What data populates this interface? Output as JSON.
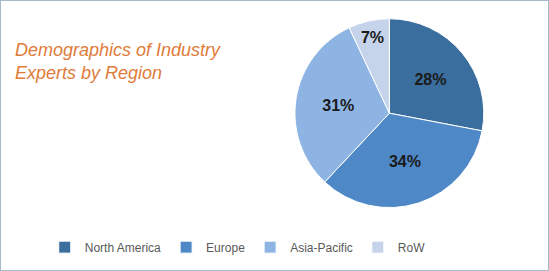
{
  "chart_data": {
    "type": "pie",
    "title": "Demographics of Industry Experts by Region",
    "categories": [
      "North America",
      "Europe",
      "Asia-Pacific",
      "RoW"
    ],
    "values": [
      28,
      34,
      31,
      7
    ],
    "value_labels": [
      "28%",
      "34%",
      "31%",
      "7%"
    ],
    "colors": [
      "#3a6e9e",
      "#4f88c6",
      "#8eb4e3",
      "#c5d4ea"
    ],
    "data_labels": true,
    "legend": "bottom"
  }
}
